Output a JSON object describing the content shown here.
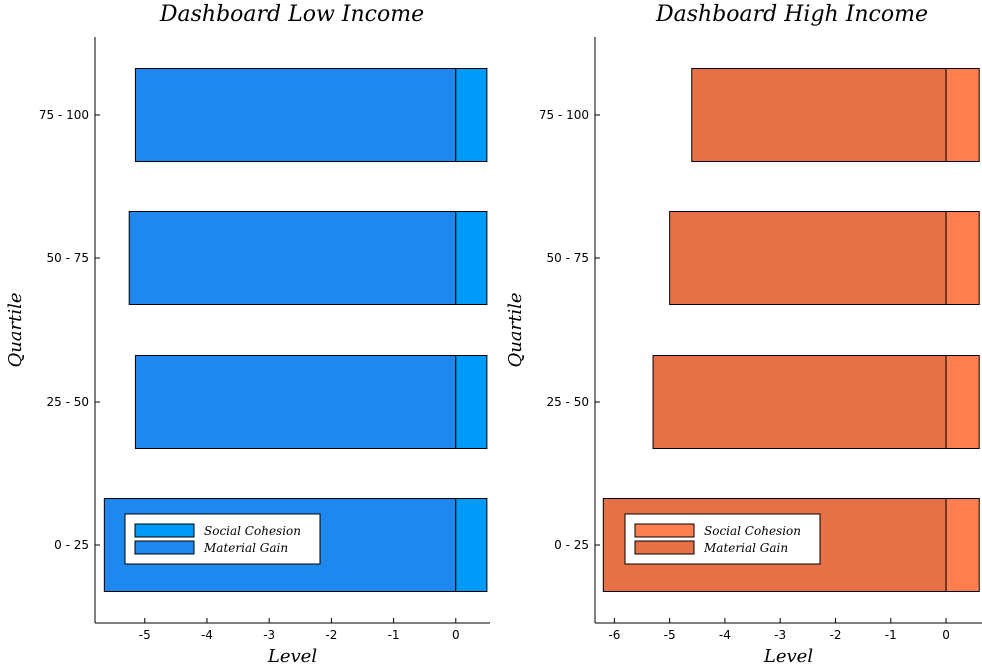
{
  "chart_data": [
    {
      "type": "bar",
      "orientation": "horizontal",
      "stacked": true,
      "title": "Dashboard Low Income",
      "xlabel": "Level",
      "ylabel": "Quartile",
      "categories": [
        "0 - 25",
        "25 - 50",
        "50 - 75",
        "75 - 100"
      ],
      "xlim": [
        -5.8,
        0.55
      ],
      "xticks": [
        -5,
        -4,
        -3,
        -2,
        -1,
        0
      ],
      "series": [
        {
          "name": "Social Cohesion",
          "color": "#009af9",
          "values": [
            0.5,
            0.5,
            0.5,
            0.5
          ]
        },
        {
          "name": "Material Gain",
          "color": "#1e88ef",
          "values": [
            -5.65,
            -5.15,
            -5.25,
            -5.15
          ]
        }
      ],
      "legend": "bottom-left",
      "grid": false
    },
    {
      "type": "bar",
      "orientation": "horizontal",
      "stacked": true,
      "title": "Dashboard High Income",
      "xlabel": "Level",
      "ylabel": "Quartile",
      "categories": [
        "0 - 25",
        "25 - 50",
        "50 - 75",
        "75 - 100"
      ],
      "xlim": [
        -6.35,
        0.65
      ],
      "xticks": [
        -6,
        -5,
        -4,
        -3,
        -2,
        -1,
        0
      ],
      "series": [
        {
          "name": "Social Cohesion",
          "color": "#ff7f4f",
          "values": [
            0.6,
            0.6,
            0.6,
            0.6
          ]
        },
        {
          "name": "Material Gain",
          "color": "#e67146",
          "values": [
            -6.2,
            -5.3,
            -5.0,
            -4.6
          ]
        }
      ],
      "legend": "bottom-left",
      "grid": false
    }
  ]
}
